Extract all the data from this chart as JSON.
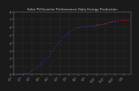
{
  "title": "Solar PV/Inverter Performance Daily Energy Production",
  "title_fontsize": 3.0,
  "bg_color": "#1a1a1a",
  "plot_bg": "#1a1a1a",
  "grid_color": "#555555",
  "blue_x": [
    3,
    5,
    7,
    9,
    11,
    13,
    15,
    17,
    19,
    21,
    23,
    25,
    27,
    29,
    31,
    33,
    35,
    37,
    39,
    41,
    43,
    45,
    47,
    49,
    51,
    53,
    55,
    57,
    59,
    61,
    63,
    65,
    67,
    69,
    71,
    73,
    75,
    77,
    79,
    81,
    83,
    85,
    87,
    89,
    91,
    93,
    95,
    97,
    99,
    101,
    103,
    105,
    107,
    109
  ],
  "blue_y": [
    0.02,
    0.03,
    0.04,
    0.06,
    0.1,
    0.15,
    0.22,
    0.32,
    0.44,
    0.58,
    0.74,
    0.92,
    1.12,
    1.34,
    1.57,
    1.82,
    2.08,
    2.35,
    2.63,
    2.92,
    3.22,
    3.52,
    3.82,
    4.12,
    4.4,
    4.67,
    4.92,
    5.15,
    5.35,
    5.53,
    5.68,
    5.81,
    5.91,
    5.99,
    6.05,
    6.1,
    6.14,
    6.17,
    6.19,
    6.21,
    6.22,
    6.24,
    6.26,
    6.28,
    6.3,
    6.33,
    6.37,
    6.41,
    6.46,
    6.52,
    6.59,
    6.65,
    6.7,
    6.74
  ],
  "red_x": [
    88,
    90,
    92,
    94,
    96,
    98,
    100,
    102,
    104,
    106,
    108,
    110,
    112,
    114,
    116,
    118,
    120,
    122,
    124
  ],
  "red_y": [
    6.26,
    6.3,
    6.33,
    6.38,
    6.44,
    6.5,
    6.57,
    6.64,
    6.7,
    6.75,
    6.8,
    6.84,
    6.87,
    6.89,
    6.91,
    6.92,
    6.93,
    6.94,
    6.95
  ],
  "ylim": [
    0,
    8
  ],
  "xlim": [
    0,
    128
  ],
  "yticks": [
    0,
    1,
    2,
    3,
    4,
    5,
    6,
    7,
    8
  ],
  "ytick_labels": [
    "0",
    "1",
    "2",
    "3",
    "4",
    "5",
    "6",
    "7",
    "8"
  ],
  "ylabel": "",
  "xlabel": "",
  "xtick_labels": [
    "1/07",
    "2/07",
    "3/07",
    "4/07",
    "5/07",
    "6/07",
    "7/07",
    "8/07",
    "9/07",
    "10/07",
    "11/07",
    "12/07",
    "1/08"
  ],
  "xtick_positions": [
    0,
    10,
    20,
    30,
    40,
    50,
    60,
    70,
    80,
    90,
    100,
    110,
    120
  ],
  "text_color": "#cccccc",
  "tick_color": "#aaaaaa",
  "spine_color": "#888888"
}
